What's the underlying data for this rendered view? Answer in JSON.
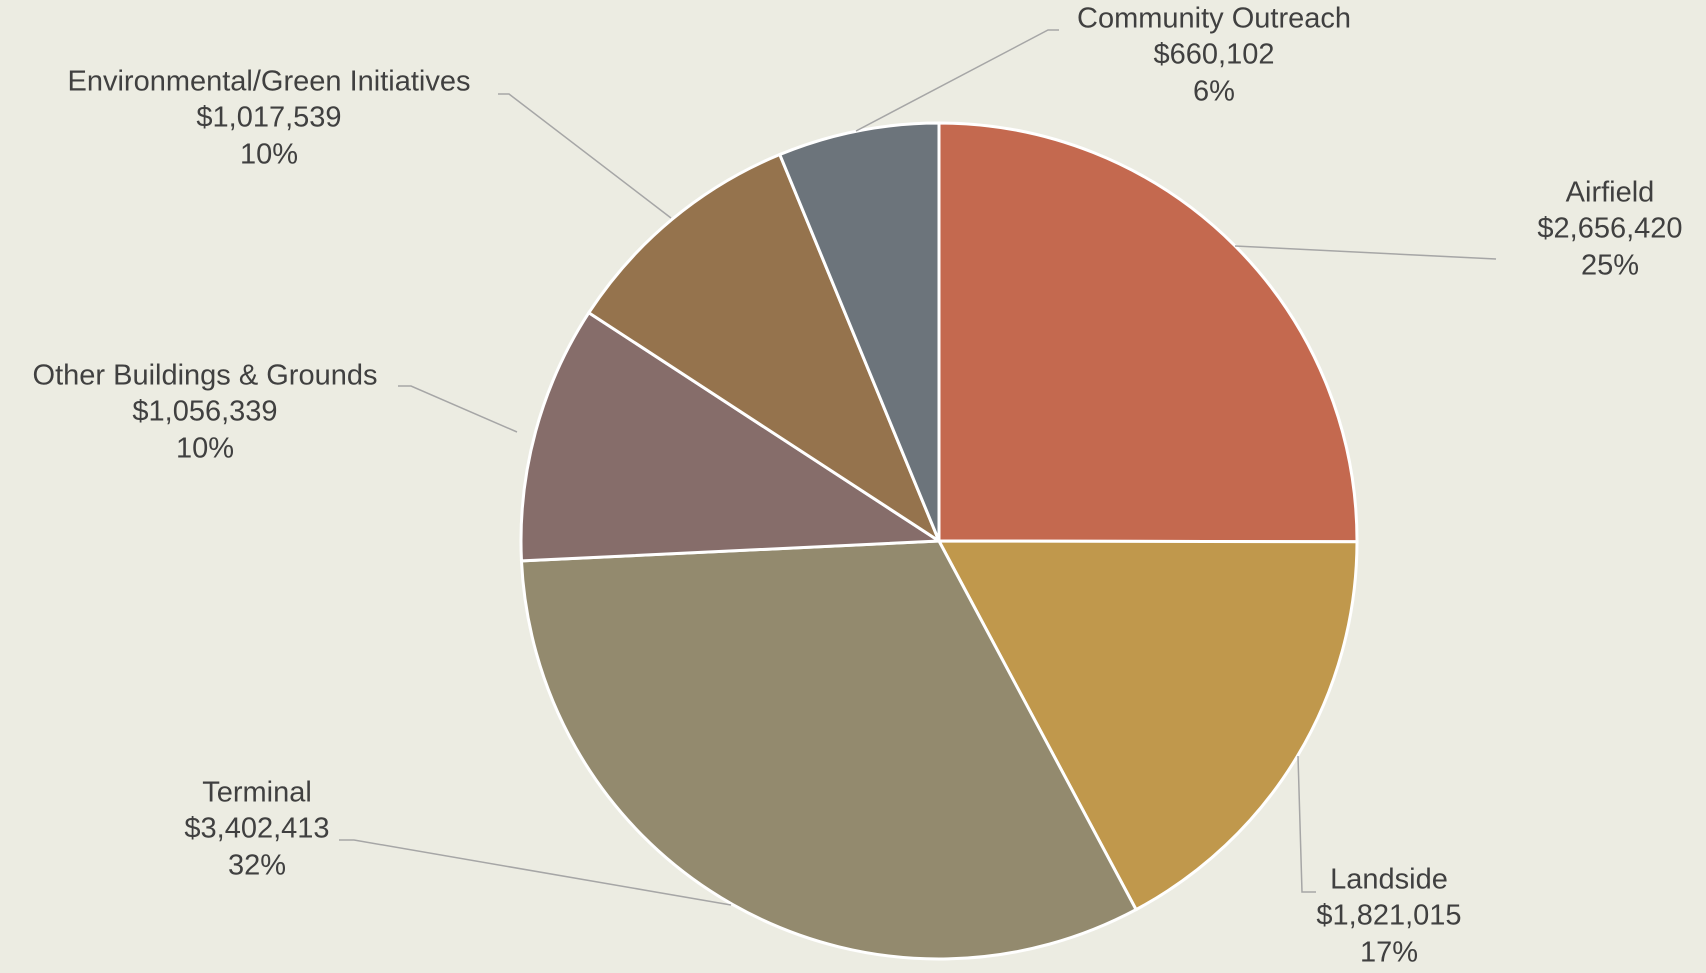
{
  "chart_data": {
    "type": "pie",
    "categories": [
      "Airfield",
      "Landside",
      "Terminal",
      "Other Buildings & Grounds",
      "Environmental/Green Initiatives",
      "Community Outreach"
    ],
    "values": [
      2656420,
      1821015,
      3402413,
      1056339,
      1017539,
      660102
    ],
    "value_labels": [
      "$2,656,420",
      "$1,821,015",
      "$3,402,413",
      "$1,056,339",
      "$1,017,539",
      "$660,102"
    ],
    "percent_labels": [
      "25%",
      "17%",
      "32%",
      "10%",
      "10%",
      "6%"
    ],
    "colors": [
      "#c4694f",
      "#c0984c",
      "#938a6e",
      "#866d6a",
      "#95734d",
      "#6c747b"
    ]
  }
}
